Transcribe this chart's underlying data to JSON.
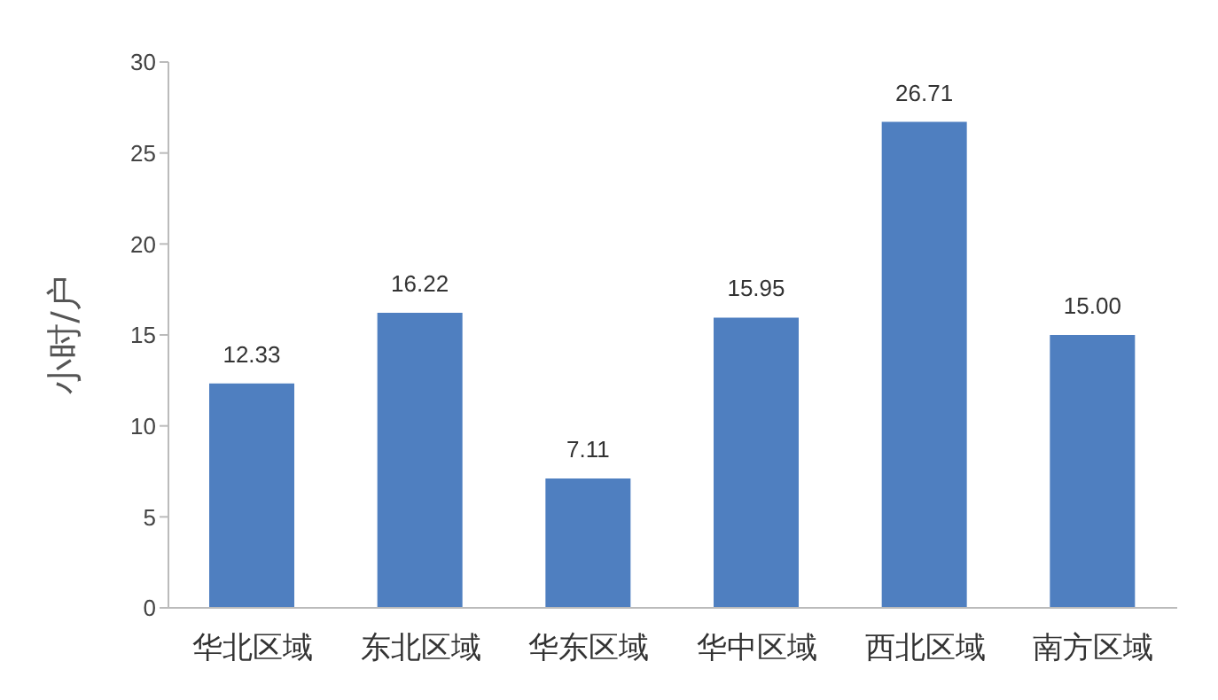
{
  "chart_data": {
    "type": "bar",
    "ylabel": "小时/户",
    "categories": [
      "华北区域",
      "东北区域",
      "华东区域",
      "华中区域",
      "西北区域",
      "南方区域"
    ],
    "values": [
      12.33,
      16.22,
      7.11,
      15.95,
      26.71,
      15.0
    ],
    "value_labels": [
      "12.33",
      "16.22",
      "7.11",
      "15.95",
      "26.71",
      "15.00"
    ],
    "color": "#4f7fc0",
    "ylim": [
      0,
      30
    ],
    "yticks": [
      0,
      5,
      10,
      15,
      20,
      25,
      30
    ],
    "grid": false,
    "legend": false
  }
}
